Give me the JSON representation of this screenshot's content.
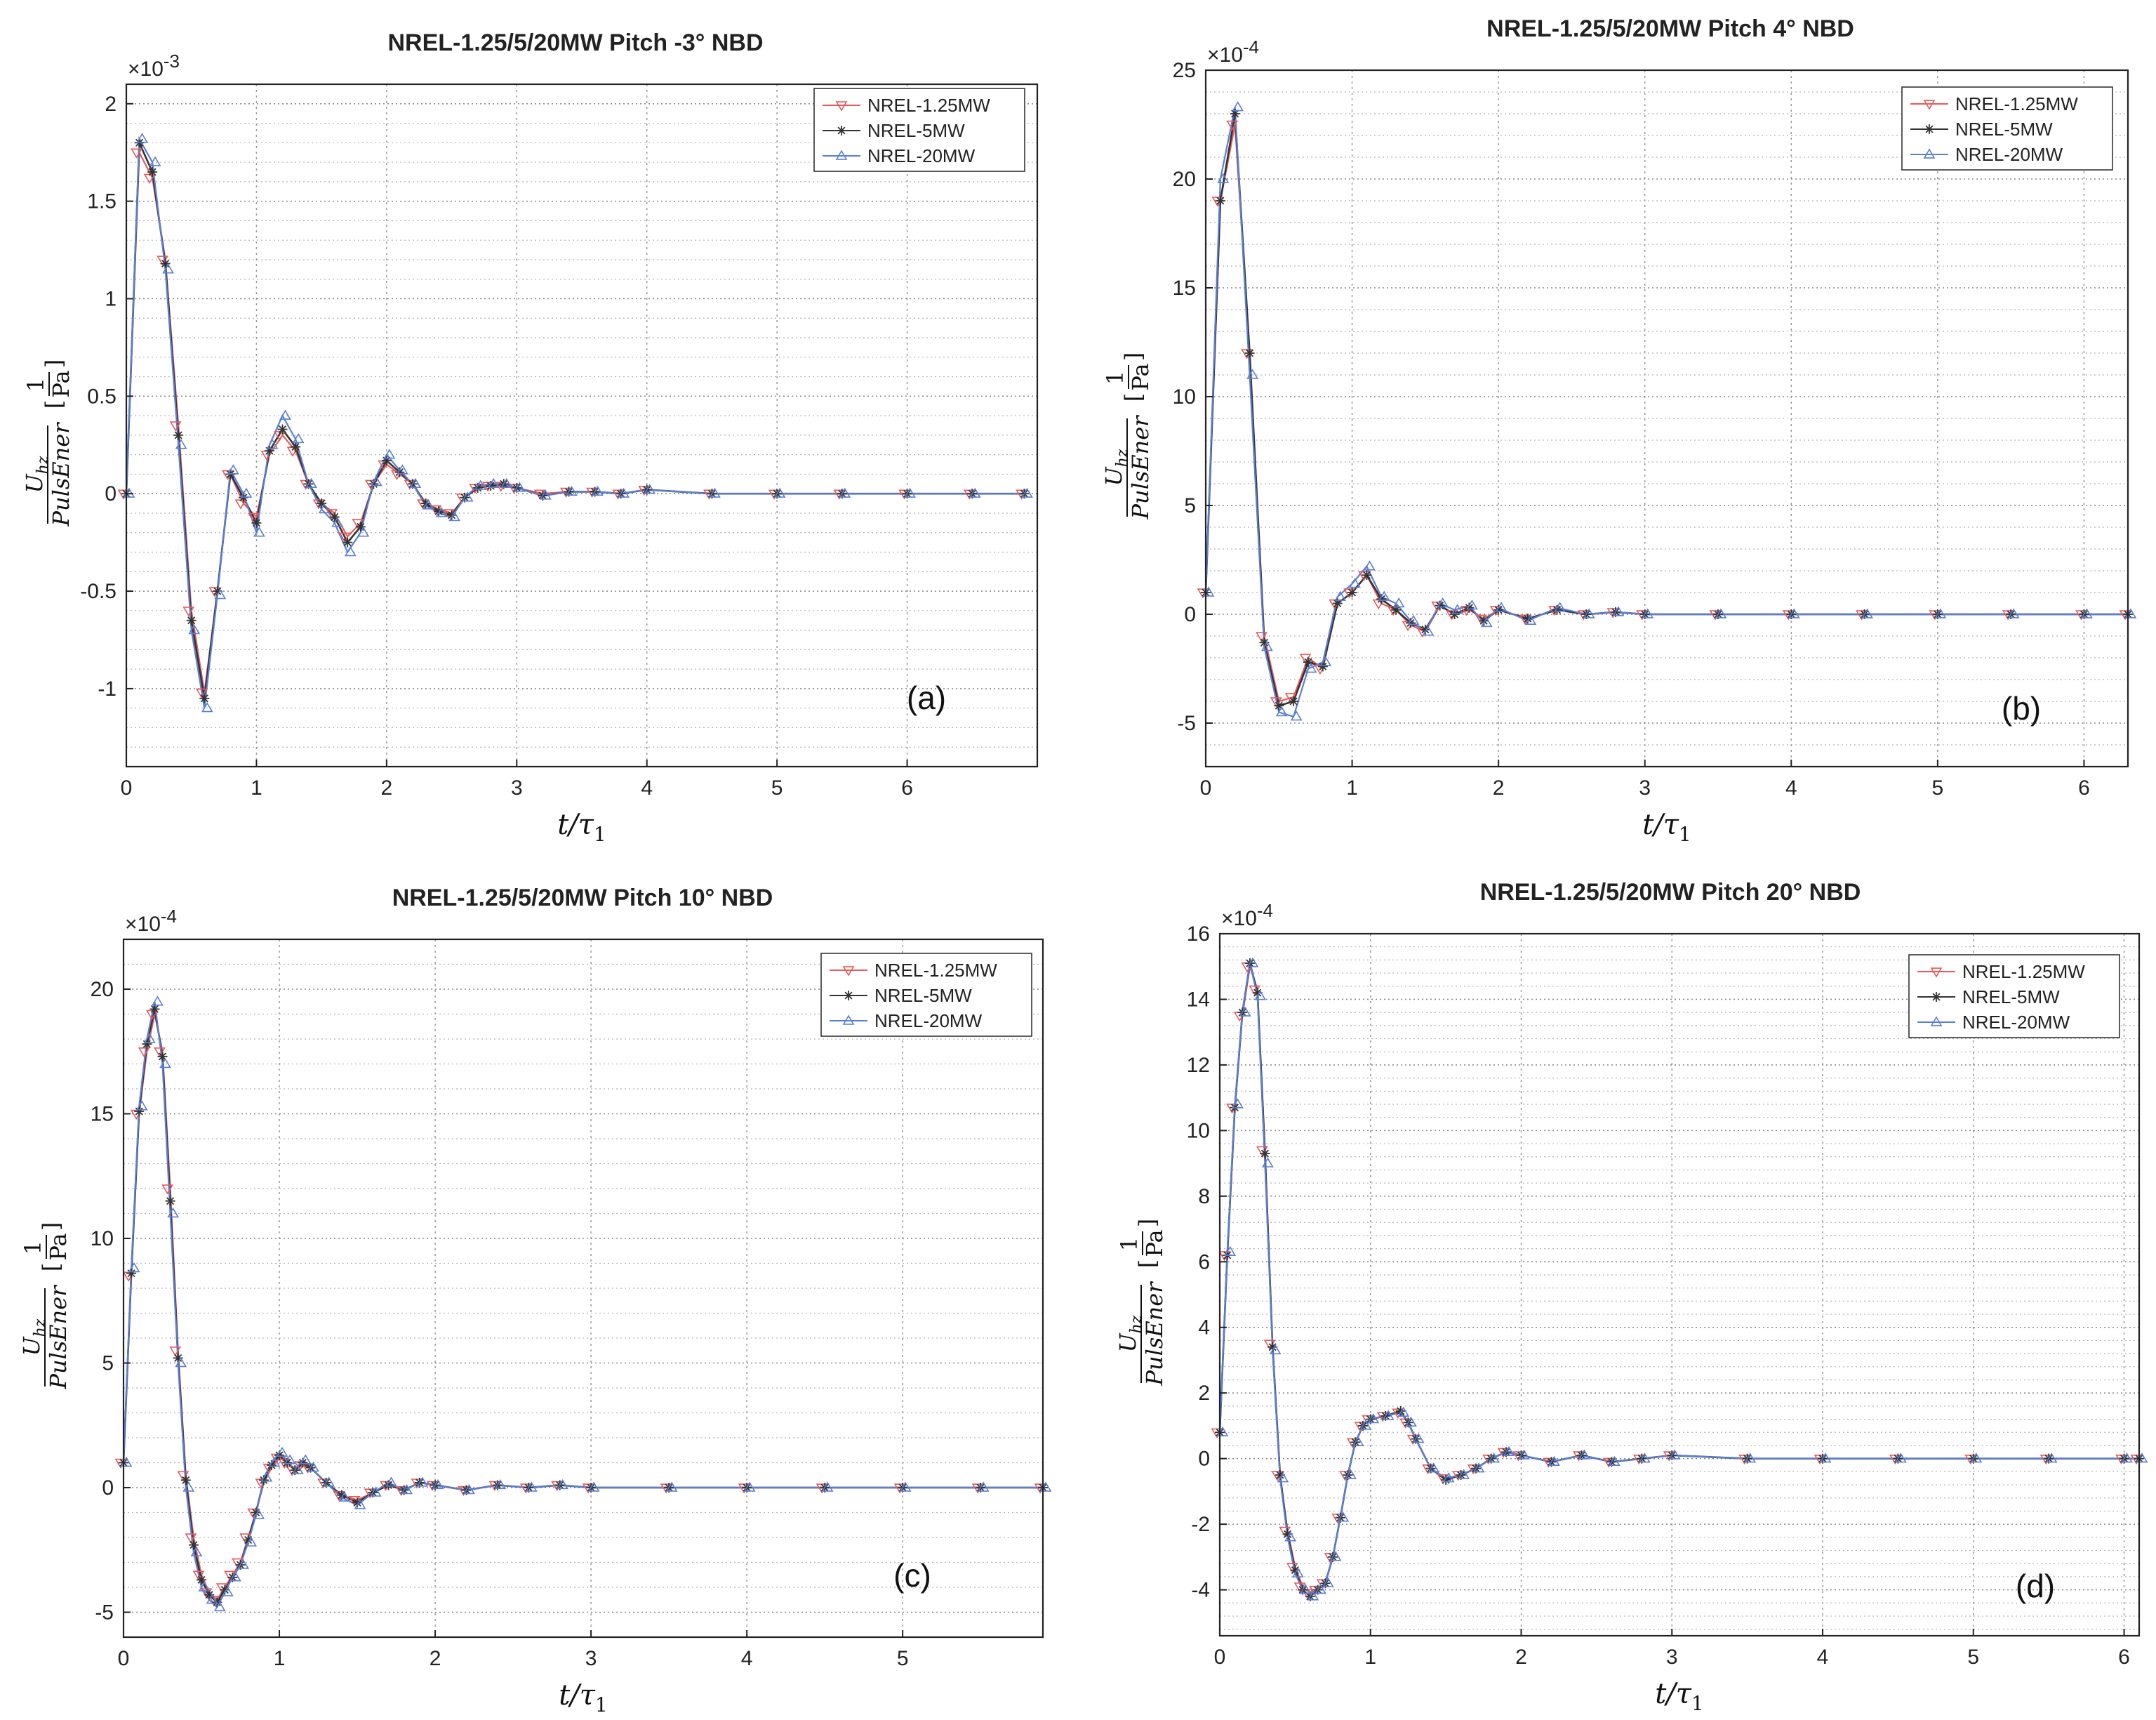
{
  "chart_data": [
    {
      "type": "line",
      "panel": "(a)",
      "title": "NREL-1.25/5/20MW Pitch -3° NBD",
      "xlabel": "t/τ1",
      "ylabel": "U_hz / PulsEner [1/Pa]",
      "exponent": "×10-3",
      "xlim": [
        0,
        7
      ],
      "ylim": [
        -1.4,
        2.1
      ],
      "xticks": [
        "0",
        "1",
        "2",
        "3",
        "4",
        "5",
        "6"
      ],
      "yticks": [
        "-1",
        "-0.5",
        "0",
        "0.5",
        "1",
        "1.5",
        "2"
      ],
      "x": [
        0,
        0.1,
        0.2,
        0.3,
        0.4,
        0.5,
        0.6,
        0.7,
        0.8,
        0.9,
        1.0,
        1.1,
        1.2,
        1.3,
        1.4,
        1.5,
        1.6,
        1.7,
        1.8,
        1.9,
        2.0,
        2.1,
        2.2,
        2.3,
        2.4,
        2.5,
        2.6,
        2.7,
        2.8,
        2.9,
        3.0,
        3.2,
        3.4,
        3.6,
        3.8,
        4.0,
        4.5,
        5.0,
        5.5,
        6.0,
        6.5,
        6.9
      ],
      "series": [
        {
          "name": "NREL-1.25MW",
          "values": [
            0,
            1.75,
            1.62,
            1.2,
            0.35,
            -0.6,
            -1.02,
            -0.5,
            0.1,
            -0.05,
            -0.12,
            0.2,
            0.3,
            0.22,
            0.05,
            -0.05,
            -0.1,
            -0.22,
            -0.15,
            0.05,
            0.15,
            0.1,
            0.05,
            -0.05,
            -0.08,
            -0.1,
            -0.02,
            0.03,
            0.04,
            0.04,
            0.03,
            0.0,
            0.01,
            0.01,
            0.0,
            0.02,
            0.0,
            0.0,
            0.0,
            0.0,
            0.0,
            0.0
          ]
        },
        {
          "name": "NREL-5MW",
          "values": [
            0,
            1.8,
            1.65,
            1.18,
            0.3,
            -0.65,
            -1.05,
            -0.5,
            0.1,
            -0.02,
            -0.15,
            0.22,
            0.33,
            0.24,
            0.05,
            -0.05,
            -0.12,
            -0.25,
            -0.17,
            0.05,
            0.17,
            0.11,
            0.05,
            -0.05,
            -0.09,
            -0.11,
            -0.02,
            0.03,
            0.04,
            0.05,
            0.03,
            -0.01,
            0.01,
            0.01,
            0.0,
            0.02,
            0.0,
            0.0,
            0.0,
            0.0,
            0.0,
            0.0
          ]
        },
        {
          "name": "NREL-20MW",
          "values": [
            0,
            1.82,
            1.7,
            1.15,
            0.25,
            -0.7,
            -1.1,
            -0.52,
            0.12,
            0.0,
            -0.2,
            0.25,
            0.4,
            0.28,
            0.05,
            -0.08,
            -0.15,
            -0.3,
            -0.2,
            0.06,
            0.2,
            0.12,
            0.05,
            -0.06,
            -0.1,
            -0.12,
            -0.02,
            0.04,
            0.05,
            0.05,
            0.03,
            -0.01,
            0.01,
            0.01,
            0.0,
            0.02,
            0.0,
            0.0,
            0.0,
            0.0,
            0.0,
            0.0
          ]
        }
      ],
      "legend": "top-right"
    },
    {
      "type": "line",
      "panel": "(b)",
      "title": "NREL-1.25/5/20MW Pitch 4° NBD",
      "xlabel": "t/τ1",
      "ylabel": "U_hz / PulsEner [1/Pa]",
      "exponent": "×10-4",
      "xlim": [
        0,
        6.3
      ],
      "ylim": [
        -7,
        25
      ],
      "xticks": [
        "0",
        "1",
        "2",
        "3",
        "4",
        "5",
        "6"
      ],
      "yticks": [
        "-5",
        "0",
        "5",
        "10",
        "15",
        "20",
        "25"
      ],
      "x": [
        0,
        0.1,
        0.2,
        0.3,
        0.4,
        0.5,
        0.6,
        0.7,
        0.8,
        0.9,
        1.0,
        1.1,
        1.2,
        1.3,
        1.4,
        1.5,
        1.6,
        1.7,
        1.8,
        1.9,
        2.0,
        2.2,
        2.4,
        2.6,
        2.8,
        3.0,
        3.5,
        4.0,
        4.5,
        5.0,
        5.5,
        6.0,
        6.3
      ],
      "series": [
        {
          "name": "NREL-1.25MW",
          "values": [
            1,
            19,
            22.5,
            12,
            -1,
            -4,
            -3.8,
            -2,
            -2.5,
            0.5,
            1,
            1.8,
            0.5,
            0.2,
            -0.5,
            -0.8,
            0.4,
            0,
            0.2,
            -0.2,
            0.2,
            -0.2,
            0.2,
            0,
            0.1,
            0,
            0,
            0,
            0,
            0,
            0,
            0,
            0
          ]
        },
        {
          "name": "NREL-5MW",
          "values": [
            1,
            19,
            23,
            12,
            -1.3,
            -4.2,
            -4,
            -2.2,
            -2.4,
            0.5,
            1,
            1.8,
            0.7,
            0.2,
            -0.4,
            -0.7,
            0.4,
            0,
            0.3,
            -0.3,
            0.2,
            -0.2,
            0.2,
            0,
            0.1,
            0,
            0,
            0,
            0,
            0,
            0,
            0,
            0
          ]
        },
        {
          "name": "NREL-20MW",
          "values": [
            1,
            20,
            23.3,
            11,
            -1.5,
            -4.5,
            -4.7,
            -2.5,
            -2.2,
            0.8,
            1.4,
            2.2,
            0.8,
            0.5,
            -0.3,
            -0.8,
            0.5,
            0.2,
            0.4,
            -0.4,
            0.3,
            -0.3,
            0.3,
            0,
            0.1,
            0,
            0,
            0,
            0,
            0,
            0,
            0,
            0
          ]
        }
      ],
      "legend": "top-right"
    },
    {
      "type": "line",
      "panel": "(c)",
      "title": "NREL-1.25/5/20MW Pitch 10° NBD",
      "xlabel": "t/τ1",
      "ylabel": "U_hz / PulsEner [1/Pa]",
      "exponent": "×10-4",
      "xlim": [
        0,
        5.9
      ],
      "ylim": [
        -6,
        22
      ],
      "xticks": [
        "0",
        "1",
        "2",
        "3",
        "4",
        "5"
      ],
      "yticks": [
        "-5",
        "0",
        "5",
        "10",
        "15",
        "20"
      ],
      "x": [
        0,
        0.05,
        0.1,
        0.15,
        0.2,
        0.25,
        0.3,
        0.35,
        0.4,
        0.45,
        0.5,
        0.55,
        0.6,
        0.65,
        0.7,
        0.75,
        0.8,
        0.85,
        0.9,
        0.95,
        1.0,
        1.05,
        1.1,
        1.15,
        1.2,
        1.3,
        1.4,
        1.5,
        1.6,
        1.7,
        1.8,
        1.9,
        2.0,
        2.2,
        2.4,
        2.6,
        2.8,
        3.0,
        3.5,
        4.0,
        4.5,
        5.0,
        5.5,
        5.9
      ],
      "series": [
        {
          "name": "NREL-1.25MW",
          "values": [
            1,
            8.5,
            15,
            17.5,
            19,
            17.5,
            12,
            5.5,
            0.5,
            -2,
            -3.5,
            -4.2,
            -4.5,
            -4.0,
            -3.5,
            -3.0,
            -2.0,
            -1.0,
            0.2,
            0.8,
            1.2,
            1.0,
            0.7,
            0.9,
            0.8,
            0.2,
            -0.3,
            -0.5,
            -0.2,
            0.1,
            -0.1,
            0.2,
            0.1,
            -0.1,
            0.1,
            0,
            0.1,
            0,
            0,
            0,
            0,
            0,
            0,
            0
          ]
        },
        {
          "name": "NREL-5MW",
          "values": [
            1,
            8.6,
            15.1,
            17.8,
            19.2,
            17.3,
            11.5,
            5.2,
            0.3,
            -2.3,
            -3.7,
            -4.3,
            -4.6,
            -4.1,
            -3.6,
            -3.1,
            -2.1,
            -1.0,
            0.3,
            0.9,
            1.3,
            1.0,
            0.7,
            1.0,
            0.8,
            0.2,
            -0.3,
            -0.6,
            -0.2,
            0.1,
            -0.1,
            0.2,
            0.1,
            -0.1,
            0.1,
            0,
            0.1,
            0,
            0,
            0,
            0,
            0,
            0,
            0
          ]
        },
        {
          "name": "NREL-20MW",
          "values": [
            1,
            8.8,
            15.3,
            18.0,
            19.5,
            17.0,
            11.0,
            5.0,
            0.0,
            -2.6,
            -4.0,
            -4.5,
            -4.8,
            -4.2,
            -3.6,
            -3.1,
            -2.2,
            -1.1,
            0.4,
            1.0,
            1.4,
            1.1,
            0.7,
            1.1,
            0.8,
            0.2,
            -0.4,
            -0.7,
            -0.2,
            0.2,
            -0.1,
            0.2,
            0.1,
            -0.1,
            0.1,
            0,
            0.1,
            0,
            0,
            0,
            0,
            0,
            0,
            0
          ]
        }
      ],
      "legend": "top-right"
    },
    {
      "type": "line",
      "panel": "(d)",
      "title": "NREL-1.25/5/20MW Pitch 20° NBD",
      "xlabel": "t/τ1",
      "ylabel": "U_hz / PulsEner [1/Pa]",
      "exponent": "×10-4",
      "xlim": [
        0,
        6.1
      ],
      "ylim": [
        -5.4,
        16
      ],
      "xticks": [
        "0",
        "1",
        "2",
        "3",
        "4",
        "5",
        "6"
      ],
      "yticks": [
        "-4",
        "-2",
        "0",
        "2",
        "4",
        "6",
        "8",
        "10",
        "12",
        "14",
        "16"
      ],
      "x": [
        0,
        0.05,
        0.1,
        0.15,
        0.2,
        0.25,
        0.3,
        0.35,
        0.4,
        0.45,
        0.5,
        0.55,
        0.6,
        0.65,
        0.7,
        0.75,
        0.8,
        0.85,
        0.9,
        0.95,
        1.0,
        1.1,
        1.2,
        1.25,
        1.3,
        1.4,
        1.5,
        1.6,
        1.7,
        1.8,
        1.9,
        2.0,
        2.2,
        2.4,
        2.6,
        2.8,
        3.0,
        3.5,
        4.0,
        4.5,
        5.0,
        5.5,
        6.0,
        6.1
      ],
      "series": [
        {
          "name": "NREL-1.25MW",
          "values": [
            0.8,
            6.2,
            10.7,
            13.5,
            15.0,
            14.3,
            9.4,
            3.5,
            -0.5,
            -2.2,
            -3.3,
            -3.9,
            -4.1,
            -4.0,
            -3.8,
            -3.0,
            -1.8,
            -0.5,
            0.5,
            1.0,
            1.2,
            1.3,
            1.4,
            1.1,
            0.6,
            -0.3,
            -0.6,
            -0.5,
            -0.3,
            0.0,
            0.2,
            0.1,
            -0.1,
            0.1,
            -0.1,
            0.0,
            0.1,
            0,
            0,
            0,
            0,
            0,
            0,
            0
          ]
        },
        {
          "name": "NREL-5MW",
          "values": [
            0.8,
            6.2,
            10.7,
            13.6,
            15.1,
            14.2,
            9.3,
            3.4,
            -0.5,
            -2.3,
            -3.4,
            -4.0,
            -4.2,
            -4.0,
            -3.8,
            -3.0,
            -1.8,
            -0.5,
            0.5,
            1.0,
            1.2,
            1.3,
            1.45,
            1.1,
            0.6,
            -0.3,
            -0.65,
            -0.5,
            -0.3,
            0.0,
            0.2,
            0.1,
            -0.1,
            0.1,
            -0.1,
            0.0,
            0.1,
            0,
            0,
            0,
            0,
            0,
            0,
            0
          ]
        },
        {
          "name": "NREL-20MW",
          "values": [
            0.8,
            6.3,
            10.8,
            13.6,
            15.1,
            14.1,
            9.0,
            3.3,
            -0.6,
            -2.4,
            -3.5,
            -4.0,
            -4.2,
            -4.0,
            -3.8,
            -3.0,
            -1.8,
            -0.5,
            0.5,
            1.0,
            1.2,
            1.3,
            1.4,
            1.1,
            0.6,
            -0.3,
            -0.6,
            -0.5,
            -0.3,
            0.0,
            0.2,
            0.1,
            -0.1,
            0.1,
            -0.1,
            0.0,
            0.1,
            0,
            0,
            0,
            0,
            0,
            0,
            0
          ]
        }
      ],
      "legend": "top-right"
    }
  ],
  "colors": {
    "NREL-1.25MW": "#e85a5a",
    "NREL-5MW": "#333333",
    "NREL-20MW": "#5a7fd6",
    "grid": "#9a9a9a"
  },
  "markers": {
    "NREL-1.25MW": "triangle-down",
    "NREL-5MW": "asterisk",
    "NREL-20MW": "triangle-up"
  }
}
